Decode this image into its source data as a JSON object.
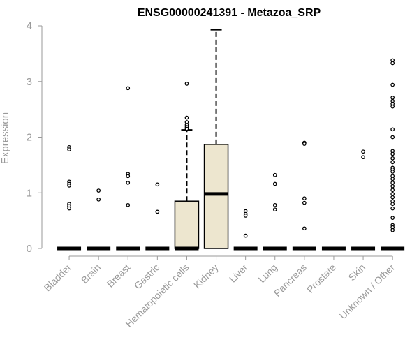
{
  "chart_data": {
    "type": "box",
    "title": "ENSG00000241391 - Metazoa_SRP",
    "xlabel": "",
    "ylabel": "Expression",
    "ylim": [
      0,
      4
    ],
    "yticks": [
      0,
      1,
      2,
      3,
      4
    ],
    "grid": false,
    "colors": {
      "box_fill": "#ede6cf",
      "line": "#000000",
      "axis": "#9a9a9a",
      "label": "#9a9a9a"
    },
    "categories": [
      "Bladder",
      "Brain",
      "Breast",
      "Gastric",
      "Hematopoietic cells",
      "Kidney",
      "Liver",
      "Lung",
      "Pancreas",
      "Prostate",
      "Skin",
      "Unknown / Other"
    ],
    "boxes": [
      {
        "q1": 0,
        "median": 0,
        "q3": 0,
        "whisker_low": 0,
        "whisker_high": 0,
        "outliers": [
          1.82,
          1.78,
          1.2,
          1.16,
          1.13,
          0.8,
          0.76,
          0.72
        ]
      },
      {
        "q1": 0,
        "median": 0,
        "q3": 0,
        "whisker_low": 0,
        "whisker_high": 0,
        "outliers": [
          1.04,
          0.88
        ]
      },
      {
        "q1": 0,
        "median": 0,
        "q3": 0,
        "whisker_low": 0,
        "whisker_high": 0,
        "outliers": [
          2.88,
          1.34,
          1.3,
          1.18,
          0.78
        ]
      },
      {
        "q1": 0,
        "median": 0,
        "q3": 0,
        "whisker_low": 0,
        "whisker_high": 0,
        "outliers": [
          1.15,
          0.66
        ]
      },
      {
        "q1": 0,
        "median": 0,
        "q3": 0.85,
        "whisker_low": 0,
        "whisker_high": 2.13,
        "outliers": [
          2.96,
          2.35,
          2.27,
          2.22,
          2.18,
          2.15
        ]
      },
      {
        "q1": 0,
        "median": 0.98,
        "q3": 1.87,
        "whisker_low": 0,
        "whisker_high": 3.93,
        "outliers": []
      },
      {
        "q1": 0,
        "median": 0,
        "q3": 0,
        "whisker_low": 0,
        "whisker_high": 0,
        "outliers": [
          0.67,
          0.62,
          0.59,
          0.23
        ]
      },
      {
        "q1": 0,
        "median": 0,
        "q3": 0,
        "whisker_low": 0,
        "whisker_high": 0,
        "outliers": [
          1.32,
          1.16,
          0.78,
          0.7
        ]
      },
      {
        "q1": 0,
        "median": 0,
        "q3": 0,
        "whisker_low": 0,
        "whisker_high": 0,
        "outliers": [
          1.9,
          1.88,
          0.9,
          0.82,
          0.36
        ]
      },
      {
        "q1": 0,
        "median": 0,
        "q3": 0,
        "whisker_low": 0,
        "whisker_high": 0,
        "outliers": []
      },
      {
        "q1": 0,
        "median": 0,
        "q3": 0,
        "whisker_low": 0,
        "whisker_high": 0,
        "outliers": [
          1.74,
          1.64
        ]
      },
      {
        "q1": 0,
        "median": 0,
        "q3": 0,
        "whisker_low": 0,
        "whisker_high": 0,
        "outliers": [
          3.38,
          3.33,
          2.94,
          2.71,
          2.65,
          2.6,
          2.55,
          2.14,
          2.0,
          1.75,
          1.7,
          1.62,
          1.55,
          1.45,
          1.42,
          1.38,
          1.3,
          1.25,
          1.18,
          1.12,
          1.05,
          0.98,
          0.92,
          0.85,
          0.8,
          0.72,
          0.55,
          0.42,
          0.38,
          0.33
        ]
      }
    ]
  }
}
